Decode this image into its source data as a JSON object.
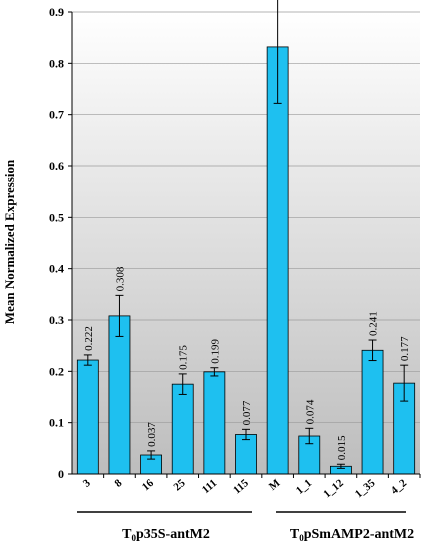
{
  "chart_data": {
    "type": "bar",
    "ylabel": "Mean Normalized  Expression",
    "ylim": [
      0,
      0.9
    ],
    "y_ticks": [
      "0",
      "0.1",
      "0.2",
      "0.3",
      "0.4",
      "0.5",
      "0.6",
      "0.7",
      "0.8",
      "0.9"
    ],
    "y_tick_values": [
      0,
      0.1,
      0.2,
      0.3,
      0.4,
      0.5,
      0.6,
      0.7,
      0.8,
      0.9
    ],
    "categories": [
      "3",
      "8",
      "16",
      "25",
      "111",
      "115",
      "M",
      "1_1",
      "1_12",
      "1_35",
      "4_2"
    ],
    "values": [
      0.222,
      0.308,
      0.037,
      0.175,
      0.199,
      0.077,
      0.832,
      0.074,
      0.015,
      0.241,
      0.177
    ],
    "value_labels": [
      "0.222",
      "0.308",
      "0.037",
      "0.175",
      "0.199",
      "0.077",
      "0.832",
      "0.074",
      "0.015",
      "0.241",
      "0.177"
    ],
    "error": [
      0.01,
      0.04,
      0.008,
      0.02,
      0.008,
      0.01,
      0.11,
      0.015,
      0.004,
      0.02,
      0.035
    ],
    "grid": true,
    "background": "vertical gradient white to grey",
    "colors": {
      "bar": "#1ec0f0",
      "bar_edge": "#000000",
      "background_top": "#ffffff",
      "background_bottom": "#bdbdbd"
    },
    "groups": [
      {
        "label_main": "T",
        "label_sub": "0",
        "label_rest": "p35S-antM2",
        "categories": [
          "3",
          "8",
          "16",
          "25",
          "111",
          "115"
        ]
      },
      {
        "label_main": "T",
        "label_sub": "0",
        "label_rest": "pSmAMP2-antM2",
        "categories": [
          "1_1",
          "1_12",
          "1_35",
          "4_2"
        ]
      }
    ]
  }
}
